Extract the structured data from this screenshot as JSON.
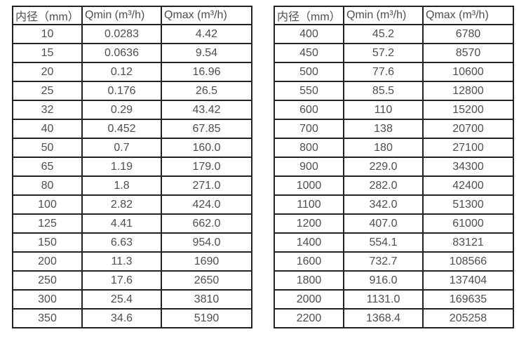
{
  "page": {
    "background": "#ffffff",
    "text_color": "#4e4e4e",
    "border_color": "#232323"
  },
  "tables": [
    {
      "name": "flow-table-small-diameters",
      "headers": [
        "内径（mm）",
        "Qmin (m³/h)",
        "Qmax (m³/h)"
      ],
      "rows": [
        [
          "10",
          "0.0283",
          "4.42"
        ],
        [
          "15",
          "0.0636",
          "9.54"
        ],
        [
          "20",
          "0.12",
          "16.96"
        ],
        [
          "25",
          "0.176",
          "26.5"
        ],
        [
          "32",
          "0.29",
          "43.42"
        ],
        [
          "40",
          "0.452",
          "67.85"
        ],
        [
          "50",
          "0.7",
          "160.0"
        ],
        [
          "65",
          "1.19",
          "179.0"
        ],
        [
          "80",
          "1.8",
          "271.0"
        ],
        [
          "100",
          "2.82",
          "424.0"
        ],
        [
          "125",
          "4.41",
          "662.0"
        ],
        [
          "150",
          "6.63",
          "954.0"
        ],
        [
          "200",
          "11.3",
          "1690"
        ],
        [
          "250",
          "17.6",
          "2650"
        ],
        [
          "300",
          "25.4",
          "3810"
        ],
        [
          "350",
          "34.6",
          "5190"
        ]
      ]
    },
    {
      "name": "flow-table-large-diameters",
      "headers": [
        "内径（mm）",
        "Qmin (m³/h)",
        "Qmax (m³/h)"
      ],
      "rows": [
        [
          "400",
          "45.2",
          "6780"
        ],
        [
          "450",
          "57.2",
          "8570"
        ],
        [
          "500",
          "77.6",
          "10600"
        ],
        [
          "550",
          "85.5",
          "12800"
        ],
        [
          "600",
          "110",
          "15200"
        ],
        [
          "700",
          "138",
          "20700"
        ],
        [
          "800",
          "180",
          "27100"
        ],
        [
          "900",
          "229.0",
          "34300"
        ],
        [
          "1000",
          "282.0",
          "42400"
        ],
        [
          "1100",
          "342.0",
          "51300"
        ],
        [
          "1200",
          "407.0",
          "61000"
        ],
        [
          "1400",
          "554.1",
          "83121"
        ],
        [
          "1600",
          "732.7",
          "108566"
        ],
        [
          "1800",
          "916.0",
          "137404"
        ],
        [
          "2000",
          "1131.0",
          "169635"
        ],
        [
          "2200",
          "1368.4",
          "205258"
        ]
      ]
    }
  ]
}
